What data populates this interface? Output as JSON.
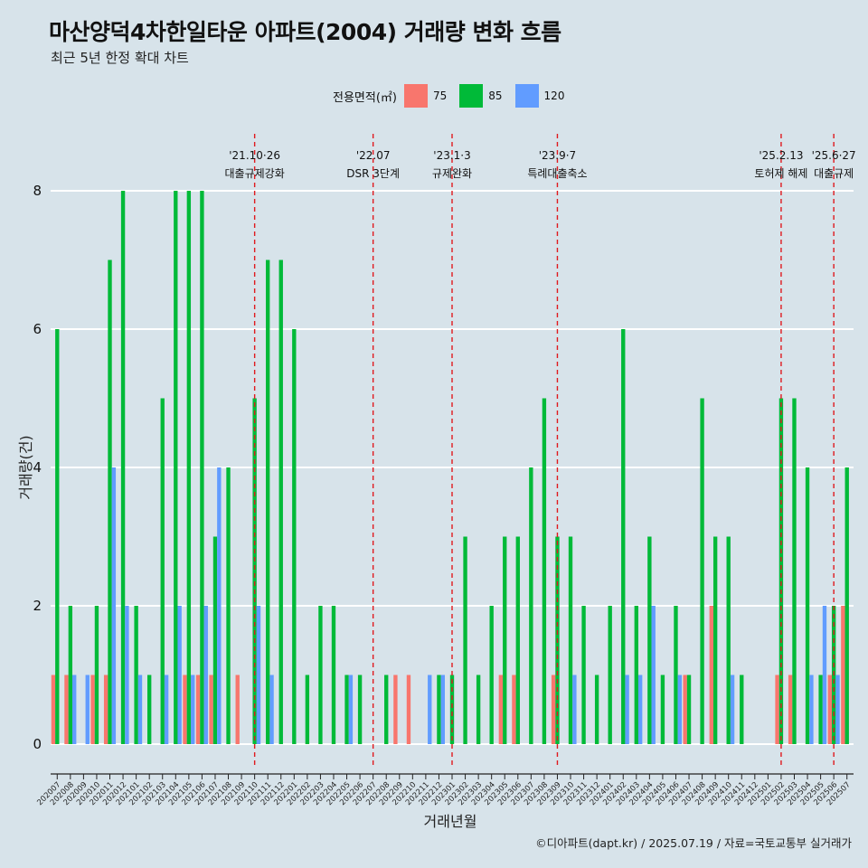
{
  "header": {
    "title": "마산양덕4차한일타운 아파트(2004) 거래량 변화 흐름",
    "subtitle": "최근 5년 한정 확대 차트"
  },
  "legend": {
    "title": "전용면적(㎡)",
    "items": [
      {
        "label": "75",
        "color": "#f8766d"
      },
      {
        "label": "85",
        "color": "#00ba38"
      },
      {
        "label": "120",
        "color": "#619cff"
      }
    ]
  },
  "caption": "©디아파트(dapt.kr) / 2025.07.19 / 자료=국토교통부 실거래가",
  "chart_data": {
    "type": "bar",
    "title": "마산양덕4차한일타운 아파트(2004) 거래량 변화 흐름",
    "subtitle": "최근 5년 한정 확대 차트",
    "xlabel": "거래년월",
    "ylabel": "거래량(건)",
    "ylim": [
      0,
      8
    ],
    "yticks": [
      0,
      2,
      4,
      6,
      8
    ],
    "grid": "horizontal",
    "legend_position": "top",
    "categories": [
      "202007",
      "202008",
      "202009",
      "202010",
      "202011",
      "202012",
      "202101",
      "202102",
      "202103",
      "202104",
      "202105",
      "202106",
      "202107",
      "202108",
      "202109",
      "202110",
      "202111",
      "202112",
      "202201",
      "202202",
      "202203",
      "202204",
      "202205",
      "202206",
      "202207",
      "202208",
      "202209",
      "202210",
      "202211",
      "202212",
      "202301",
      "202302",
      "202303",
      "202304",
      "202305",
      "202306",
      "202307",
      "202308",
      "202309",
      "202310",
      "202311",
      "202312",
      "202401",
      "202402",
      "202403",
      "202404",
      "202405",
      "202406",
      "202407",
      "202408",
      "202409",
      "202410",
      "202411",
      "202412",
      "202501",
      "202502",
      "202503",
      "202504",
      "202505",
      "202506",
      "202507"
    ],
    "series": [
      {
        "name": "75",
        "color": "#f8766d",
        "values": [
          1,
          1,
          0,
          1,
          1,
          0,
          0,
          0,
          0,
          0,
          1,
          1,
          1,
          0,
          1,
          0,
          0,
          0,
          0,
          0,
          0,
          0,
          0,
          0,
          0,
          0,
          1,
          1,
          0,
          0,
          0,
          0,
          0,
          0,
          1,
          1,
          0,
          0,
          1,
          0,
          0,
          0,
          0,
          0,
          0,
          0,
          0,
          0,
          1,
          0,
          2,
          0,
          0,
          0,
          0,
          1,
          1,
          0,
          0,
          1,
          2
        ]
      },
      {
        "name": "85",
        "color": "#00ba38",
        "values": [
          6,
          2,
          0,
          2,
          7,
          8,
          2,
          1,
          5,
          8,
          8,
          8,
          3,
          4,
          0,
          5,
          7,
          7,
          6,
          1,
          2,
          2,
          1,
          1,
          0,
          1,
          0,
          0,
          0,
          1,
          1,
          3,
          1,
          2,
          3,
          3,
          4,
          5,
          3,
          3,
          2,
          1,
          2,
          6,
          2,
          3,
          1,
          2,
          1,
          5,
          3,
          3,
          1,
          0,
          0,
          5,
          5,
          4,
          1,
          2,
          4
        ]
      },
      {
        "name": "120",
        "color": "#619cff",
        "values": [
          0,
          1,
          1,
          0,
          4,
          2,
          1,
          0,
          1,
          2,
          1,
          2,
          4,
          0,
          0,
          2,
          1,
          0,
          0,
          0,
          0,
          0,
          1,
          0,
          0,
          0,
          0,
          0,
          1,
          1,
          0,
          0,
          0,
          0,
          0,
          0,
          0,
          0,
          0,
          1,
          0,
          0,
          0,
          1,
          1,
          2,
          0,
          1,
          0,
          0,
          0,
          1,
          0,
          0,
          0,
          0,
          0,
          1,
          2,
          1,
          0
        ]
      }
    ],
    "annotations": [
      {
        "at": "202110",
        "date": "'21.10·26",
        "label": "대출규제강화"
      },
      {
        "at": "202207",
        "date": "'22.07",
        "label": "DSR 3단계"
      },
      {
        "at": "202301",
        "date": "'23.1·3",
        "label": "규제완화"
      },
      {
        "at": "202309",
        "date": "'23.9·7",
        "label": "특례대출축소"
      },
      {
        "at": "202502",
        "date": "'25.2.13",
        "label": "토허제 해제"
      },
      {
        "at": "202506",
        "date": "'25.6·27",
        "label": "대출규제"
      }
    ]
  }
}
